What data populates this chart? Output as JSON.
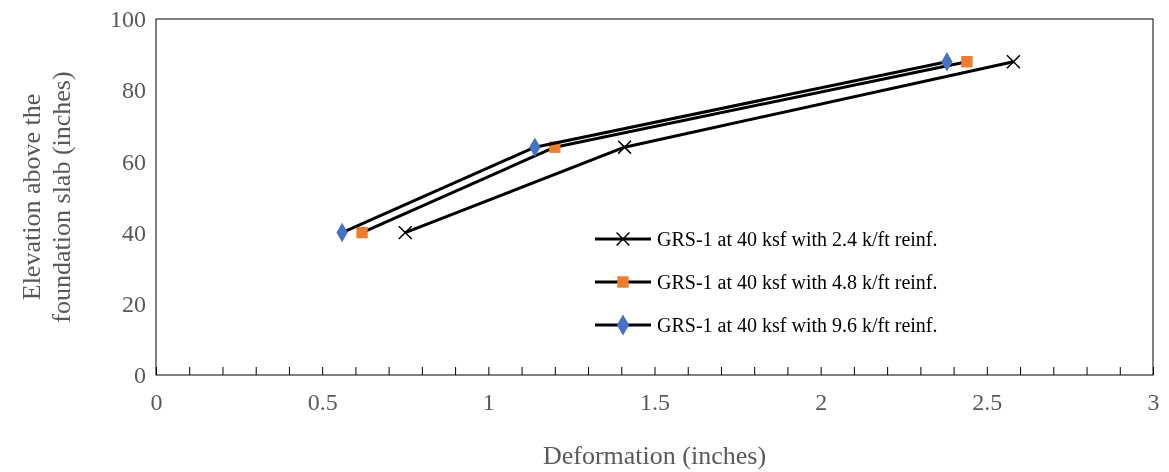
{
  "chart_data": {
    "type": "line",
    "xlabel": "Deformation (inches)",
    "ylabel": "Elevation above the foundation slab (inches)",
    "xlim": [
      0,
      3
    ],
    "xticks": [
      0,
      {
        "value": 0.1,
        "label": null
      },
      {
        "value": 0.2,
        "label": null
      },
      {
        "value": 0.3,
        "label": null
      },
      {
        "value": 0.4,
        "label": null
      },
      0.5,
      {
        "value": 0.6,
        "label": null
      },
      {
        "value": 0.7,
        "label": null
      },
      {
        "value": 0.8,
        "label": null
      },
      {
        "value": 0.9,
        "label": null
      },
      1,
      {
        "value": 1.1,
        "label": null
      },
      {
        "value": 1.2,
        "label": null
      },
      {
        "value": 1.3,
        "label": null
      },
      {
        "value": 1.4,
        "label": null
      },
      1.5,
      {
        "value": 1.6,
        "label": null
      },
      {
        "value": 1.7,
        "label": null
      },
      {
        "value": 1.8,
        "label": null
      },
      {
        "value": 1.9,
        "label": null
      },
      2,
      {
        "value": 2.1,
        "label": null
      },
      {
        "value": 2.2,
        "label": null
      },
      {
        "value": 2.3,
        "label": null
      },
      {
        "value": 2.4,
        "label": null
      },
      2.5,
      {
        "value": 2.6,
        "label": null
      },
      {
        "value": 2.7,
        "label": null
      },
      {
        "value": 2.8,
        "label": null
      },
      {
        "value": 2.9,
        "label": null
      },
      3
    ],
    "ylim": [
      0,
      100
    ],
    "yticks": [
      0,
      20,
      40,
      60,
      80,
      100
    ],
    "grid": false,
    "legend": "bottom right",
    "series": [
      {
        "name": "GRS-1 at 40 ksf with 2.4 k/ft reinf.",
        "color": "#000000",
        "marker": "cross",
        "x": [
          0.75,
          1.41,
          2.58
        ],
        "values": [
          40,
          64,
          88
        ]
      },
      {
        "name": "GRS-1 at 40 ksf with 4.8 k/ft reinf.",
        "color": "#ed7d31",
        "marker": "square",
        "x": [
          0.62,
          1.2,
          2.44
        ],
        "values": [
          40,
          64,
          88
        ]
      },
      {
        "name": "GRS-1 at 40 ksf with 9.6 k/ft reinf.",
        "color": "#4472c4",
        "marker": "diamond",
        "x": [
          0.56,
          1.14,
          2.38
        ],
        "values": [
          40,
          64,
          88
        ]
      }
    ]
  }
}
